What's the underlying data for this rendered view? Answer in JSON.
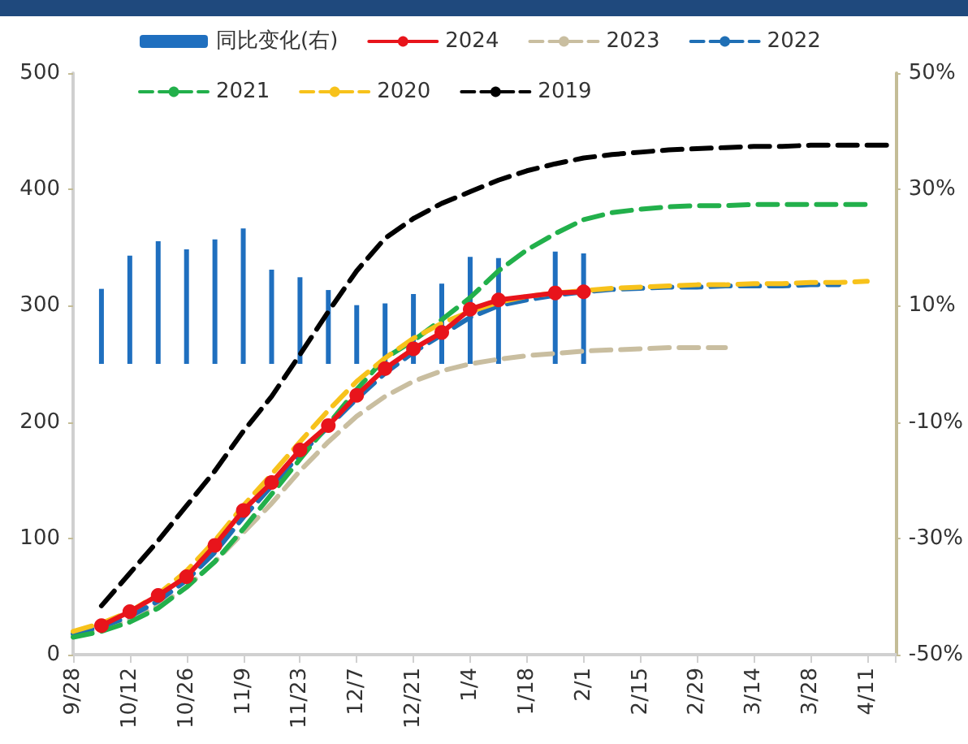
{
  "chart_data": {
    "type": "line",
    "categories": [
      "9/28",
      null,
      "10/12",
      null,
      "10/26",
      null,
      "11/9",
      null,
      "11/23",
      null,
      "12/7",
      null,
      "12/21",
      null,
      "1/4",
      null,
      "1/18",
      null,
      "2/1",
      null,
      "2/15",
      null,
      "2/29",
      null,
      "3/14",
      null,
      "3/28",
      null,
      "4/11",
      null
    ],
    "ylim": [
      0,
      500
    ],
    "yticks": [
      0,
      100,
      200,
      300,
      400,
      500
    ],
    "y2lim": [
      -50,
      50
    ],
    "y2ticks": [
      {
        "value": -50,
        "label": "-50%"
      },
      {
        "value": -30,
        "label": "-30%"
      },
      {
        "value": -10,
        "label": "-10%"
      },
      {
        "value": 10,
        "label": "10%"
      },
      {
        "value": 30,
        "label": "30%"
      },
      {
        "value": 50,
        "label": "50%"
      }
    ],
    "grid": false,
    "legend": "top",
    "series": [
      {
        "name": "同比变化(右)",
        "type": "bar",
        "axis": "y2",
        "color": "#1f6fbf",
        "values": [
          null,
          12.9,
          18.6,
          21.1,
          19.7,
          21.4,
          23.3,
          16.2,
          14.9,
          12.7,
          10.1,
          10.4,
          12.0,
          13.8,
          18.4,
          18.2,
          null,
          19.3,
          19.0,
          null,
          null,
          null,
          null,
          null,
          null,
          null,
          null,
          null,
          null,
          null
        ]
      },
      {
        "name": "2024",
        "color": "#e8141b",
        "marker": "circle",
        "line_style": "solid",
        "values": [
          null,
          25,
          37,
          51,
          67,
          94,
          124,
          148,
          176,
          197,
          223,
          246,
          263,
          277,
          297,
          305,
          null,
          311,
          312,
          null,
          null,
          null,
          null,
          null,
          null,
          null,
          null,
          null,
          null,
          null
        ]
      },
      {
        "name": "2023",
        "color": "#c9bea0",
        "marker": "none",
        "line_style": "dashed",
        "values": [
          17,
          22,
          30,
          42,
          58,
          80,
          105,
          130,
          158,
          183,
          205,
          222,
          235,
          244,
          250,
          254,
          257,
          259,
          261,
          262,
          263,
          264,
          264,
          264,
          null,
          null,
          null,
          null,
          null,
          null
        ]
      },
      {
        "name": "2022",
        "color": "#1f6fb5",
        "marker": "none",
        "line_style": "dashed",
        "values": [
          18,
          24,
          33,
          46,
          64,
          88,
          118,
          145,
          172,
          196,
          220,
          242,
          260,
          275,
          290,
          300,
          305,
          309,
          312,
          314,
          315,
          316,
          316,
          317,
          317,
          317,
          318,
          318,
          null,
          null
        ]
      },
      {
        "name": "2021",
        "color": "#22b04b",
        "marker": "none",
        "line_style": "dashed",
        "values": [
          15,
          20,
          28,
          40,
          58,
          80,
          108,
          138,
          168,
          198,
          228,
          255,
          270,
          288,
          307,
          330,
          348,
          362,
          374,
          380,
          383,
          385,
          386,
          386,
          387,
          387,
          387,
          387,
          387,
          null
        ]
      },
      {
        "name": "2020",
        "color": "#f7c21b",
        "marker": "none",
        "line_style": "dashed",
        "values": [
          20,
          27,
          37,
          52,
          72,
          98,
          128,
          155,
          183,
          210,
          235,
          255,
          272,
          285,
          295,
          303,
          308,
          311,
          313,
          315,
          316,
          317,
          318,
          318,
          319,
          319,
          320,
          320,
          321,
          null
        ]
      },
      {
        "name": "2019",
        "color": "#000000",
        "marker": "none",
        "line_style": "dashed",
        "values": [
          null,
          42,
          70,
          98,
          128,
          158,
          192,
          222,
          258,
          295,
          330,
          358,
          375,
          388,
          398,
          408,
          416,
          422,
          427,
          430,
          432,
          434,
          435,
          436,
          437,
          437,
          438,
          438,
          438,
          438
        ]
      }
    ]
  }
}
